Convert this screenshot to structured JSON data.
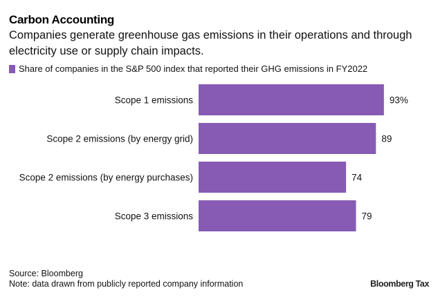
{
  "header": {
    "title": "Carbon Accounting",
    "subtitle": "Companies generate greenhouse gas emissions in their operations and through electricity use or supply chain impacts."
  },
  "footer": {
    "source": "Source: Bloomberg",
    "note": "Note: data drawn from publicly reported company information",
    "brand": "Bloomberg Tax"
  },
  "colors": {
    "bar": "#875bb4"
  },
  "chart_data": {
    "type": "bar",
    "orientation": "horizontal",
    "title": "Carbon Accounting",
    "legend": [
      "Share of companies in the S&P 500 index that reported their GHG emissions in FY2022"
    ],
    "legend_position": "top-left",
    "categories": [
      "Scope 1 emissions",
      "Scope 2 emissions (by energy grid)",
      "Scope 2 emissions (by energy purchases)",
      "Scope 3 emissions"
    ],
    "series": [
      {
        "name": "Share of companies in the S&P 500 index that reported their GHG emissions in FY2022",
        "values": [
          93,
          89,
          74,
          79
        ]
      }
    ],
    "value_labels": [
      "93%",
      "89",
      "74",
      "79"
    ],
    "xlim": [
      0,
      100
    ],
    "grid": false
  }
}
